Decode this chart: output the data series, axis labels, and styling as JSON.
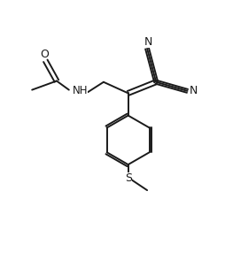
{
  "bg_color": "#ffffff",
  "line_color": "#1a1a1a",
  "line_width": 1.4,
  "font_size": 8.5,
  "fig_width": 2.54,
  "fig_height": 2.94,
  "dpi": 100,
  "xlim": [
    0,
    10
  ],
  "ylim": [
    0,
    11.6
  ]
}
